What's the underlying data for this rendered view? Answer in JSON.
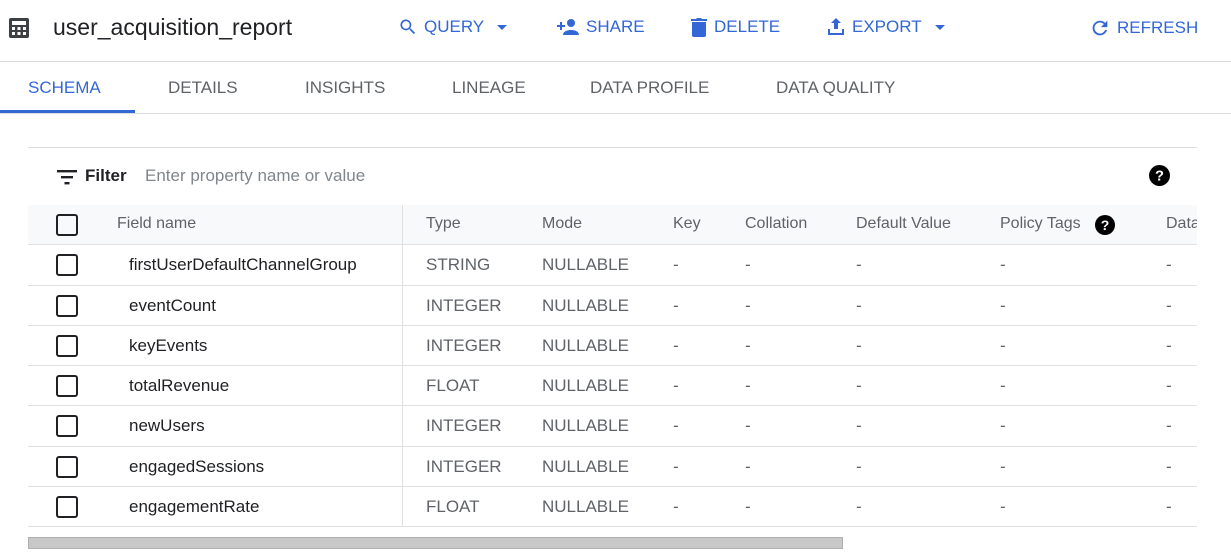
{
  "header": {
    "title": "user_acquisition_report",
    "actions": [
      "QUERY",
      "SHARE",
      "DELETE",
      "EXPORT",
      "REFRESH"
    ]
  },
  "tabs": [
    "SCHEMA",
    "DETAILS",
    "INSIGHTS",
    "LINEAGE",
    "DATA PROFILE",
    "DATA QUALITY"
  ],
  "active_tab": "SCHEMA",
  "filter": {
    "label": "Filter",
    "placeholder": "Enter property name or value"
  },
  "columns": [
    "Field name",
    "Type",
    "Mode",
    "Key",
    "Collation",
    "Default Value",
    "Policy Tags",
    "Data"
  ],
  "rows": [
    {
      "name": "firstUserDefaultChannelGroup",
      "type": "STRING",
      "mode": "NULLABLE",
      "key": "-",
      "collation": "-",
      "default": "-",
      "policy": "-",
      "data": "-"
    },
    {
      "name": "eventCount",
      "type": "INTEGER",
      "mode": "NULLABLE",
      "key": "-",
      "collation": "-",
      "default": "-",
      "policy": "-",
      "data": "-"
    },
    {
      "name": "keyEvents",
      "type": "INTEGER",
      "mode": "NULLABLE",
      "key": "-",
      "collation": "-",
      "default": "-",
      "policy": "-",
      "data": "-"
    },
    {
      "name": "totalRevenue",
      "type": "FLOAT",
      "mode": "NULLABLE",
      "key": "-",
      "collation": "-",
      "default": "-",
      "policy": "-",
      "data": "-"
    },
    {
      "name": "newUsers",
      "type": "INTEGER",
      "mode": "NULLABLE",
      "key": "-",
      "collation": "-",
      "default": "-",
      "policy": "-",
      "data": "-"
    },
    {
      "name": "engagedSessions",
      "type": "INTEGER",
      "mode": "NULLABLE",
      "key": "-",
      "collation": "-",
      "default": "-",
      "policy": "-",
      "data": "-"
    },
    {
      "name": "engagementRate",
      "type": "FLOAT",
      "mode": "NULLABLE",
      "key": "-",
      "collation": "-",
      "default": "-",
      "policy": "-",
      "data": "-"
    }
  ],
  "colors": {
    "accent": "#3367d6"
  }
}
